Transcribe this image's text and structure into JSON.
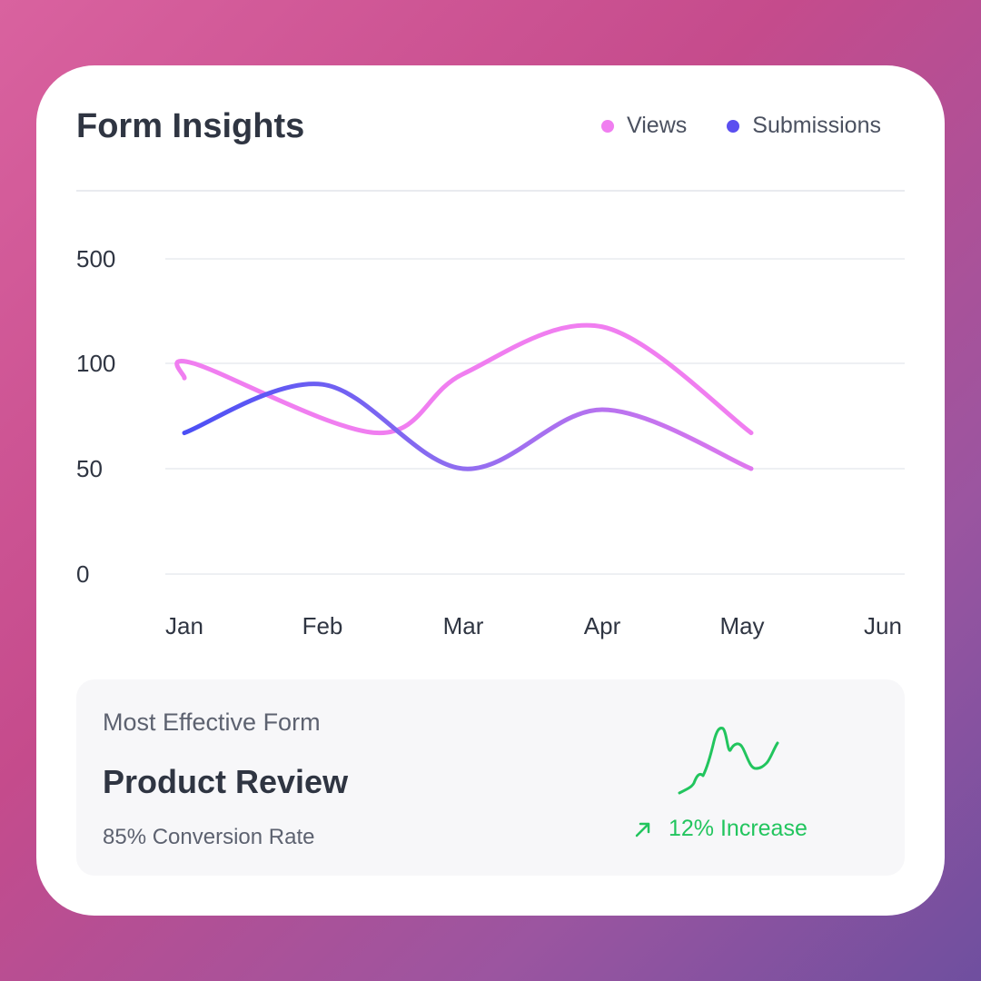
{
  "card": {
    "title": "Form Insights",
    "legend": [
      {
        "label": "Views",
        "color": "#f07ef0"
      },
      {
        "label": "Submissions",
        "color": "#5b4ff0"
      }
    ]
  },
  "chart_data": {
    "type": "line",
    "title": "Form Insights",
    "x_categories": [
      "Jan",
      "Feb",
      "Mar",
      "Apr",
      "May",
      "Jun"
    ],
    "y_ticks": [
      0,
      50,
      100,
      500
    ],
    "y_scale": "piecewise (0, 50, 100, 500 at even spacing)",
    "grid": "horizontal",
    "legend_position": "top-right",
    "series": [
      {
        "name": "Views",
        "color": "#f07ef0",
        "x": [
          "Jan",
          "Jan+",
          "Feb+",
          "Mar",
          "Apr",
          "May+"
        ],
        "values": [
          93,
          100,
          67,
          95,
          240,
          67
        ]
      },
      {
        "name": "Submissions",
        "color": "#5b4ff0",
        "x": [
          "Jan",
          "Feb",
          "Mar",
          "Apr",
          "May+"
        ],
        "values": [
          67,
          90,
          50,
          78,
          50
        ]
      }
    ]
  },
  "summary": {
    "label": "Most Effective Form",
    "form_name": "Product Review",
    "conversion": "85% Conversion Rate",
    "trend": "12% Increase",
    "trend_color": "#22c55e"
  }
}
